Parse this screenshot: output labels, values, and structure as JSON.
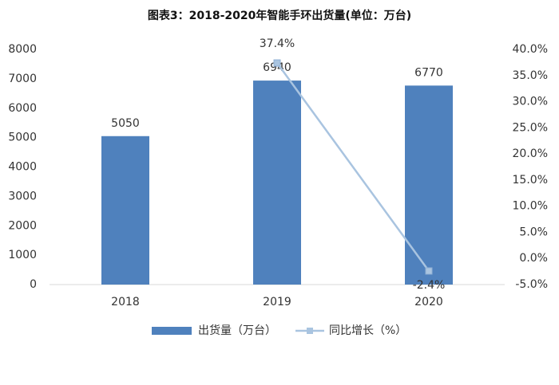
{
  "chart_data": {
    "type": "bar",
    "title": "图表3：2018-2020年智能手环出货量(单位：万台)",
    "categories": [
      "2018",
      "2019",
      "2020"
    ],
    "series": [
      {
        "name": "出货量（万台）",
        "type": "bar",
        "color": "#4f81bd",
        "values": [
          5050,
          6940,
          6770
        ]
      },
      {
        "name": "同比增长（%）",
        "type": "line",
        "axis": "y2",
        "color": "#a9c4e0",
        "values": [
          null,
          37.4,
          -2.4
        ],
        "value_labels": [
          null,
          "37.4%",
          "-2.4%"
        ]
      }
    ],
    "ylim": [
      0,
      8000
    ],
    "yticks": [
      0,
      1000,
      2000,
      3000,
      4000,
      5000,
      6000,
      7000,
      8000
    ],
    "y2lim": [
      -5,
      40
    ],
    "y2ticks": [
      {
        "value": -5,
        "label": "-5.0%"
      },
      {
        "value": 0,
        "label": "0.0%"
      },
      {
        "value": 5,
        "label": "5.0%"
      },
      {
        "value": 10,
        "label": "10.0%"
      },
      {
        "value": 15,
        "label": "15.0%"
      },
      {
        "value": 20,
        "label": "20.0%"
      },
      {
        "value": 25,
        "label": "25.0%"
      },
      {
        "value": 30,
        "label": "30.0%"
      },
      {
        "value": 35,
        "label": "35.0%"
      },
      {
        "value": 40,
        "label": "40.0%"
      }
    ],
    "grid": false
  }
}
